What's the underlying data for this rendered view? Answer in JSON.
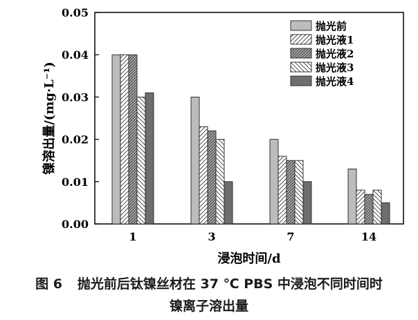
{
  "chart_data": {
    "type": "bar",
    "categories": [
      "1",
      "3",
      "7",
      "14"
    ],
    "series": [
      {
        "name": "抛光前",
        "values": [
          0.04,
          0.03,
          0.02,
          0.013
        ],
        "fill": "#bcbcbc",
        "pattern": "solid"
      },
      {
        "name": "抛光液1",
        "values": [
          0.04,
          0.023,
          0.016,
          0.008
        ],
        "fill": "#ffffff",
        "pattern": "hatch-sparse"
      },
      {
        "name": "抛光液2",
        "values": [
          0.04,
          0.022,
          0.015,
          0.007
        ],
        "fill": "#a8a8a8",
        "pattern": "hatch-dense"
      },
      {
        "name": "抛光液3",
        "values": [
          0.03,
          0.02,
          0.015,
          0.008
        ],
        "fill": "#ffffff",
        "pattern": "backhatch"
      },
      {
        "name": "抛光液4",
        "values": [
          0.031,
          0.01,
          0.01,
          0.005
        ],
        "fill": "#6e6e6e",
        "pattern": "solid"
      }
    ],
    "xlabel": "浸泡时间/d",
    "ylabel": "镍溶出量/(mg·L⁻¹)",
    "ylim": [
      0,
      0.05
    ],
    "yticks": [
      "0.00",
      "0.01",
      "0.02",
      "0.03",
      "0.04",
      "0.05"
    ],
    "grid": false,
    "legend_position": "top-right"
  },
  "caption": {
    "figure_number": "图 6",
    "line1": "抛光前后钛镍丝材在 37 ℃ PBS 中浸泡不同时间时",
    "line2": "镍离子溶出量"
  }
}
